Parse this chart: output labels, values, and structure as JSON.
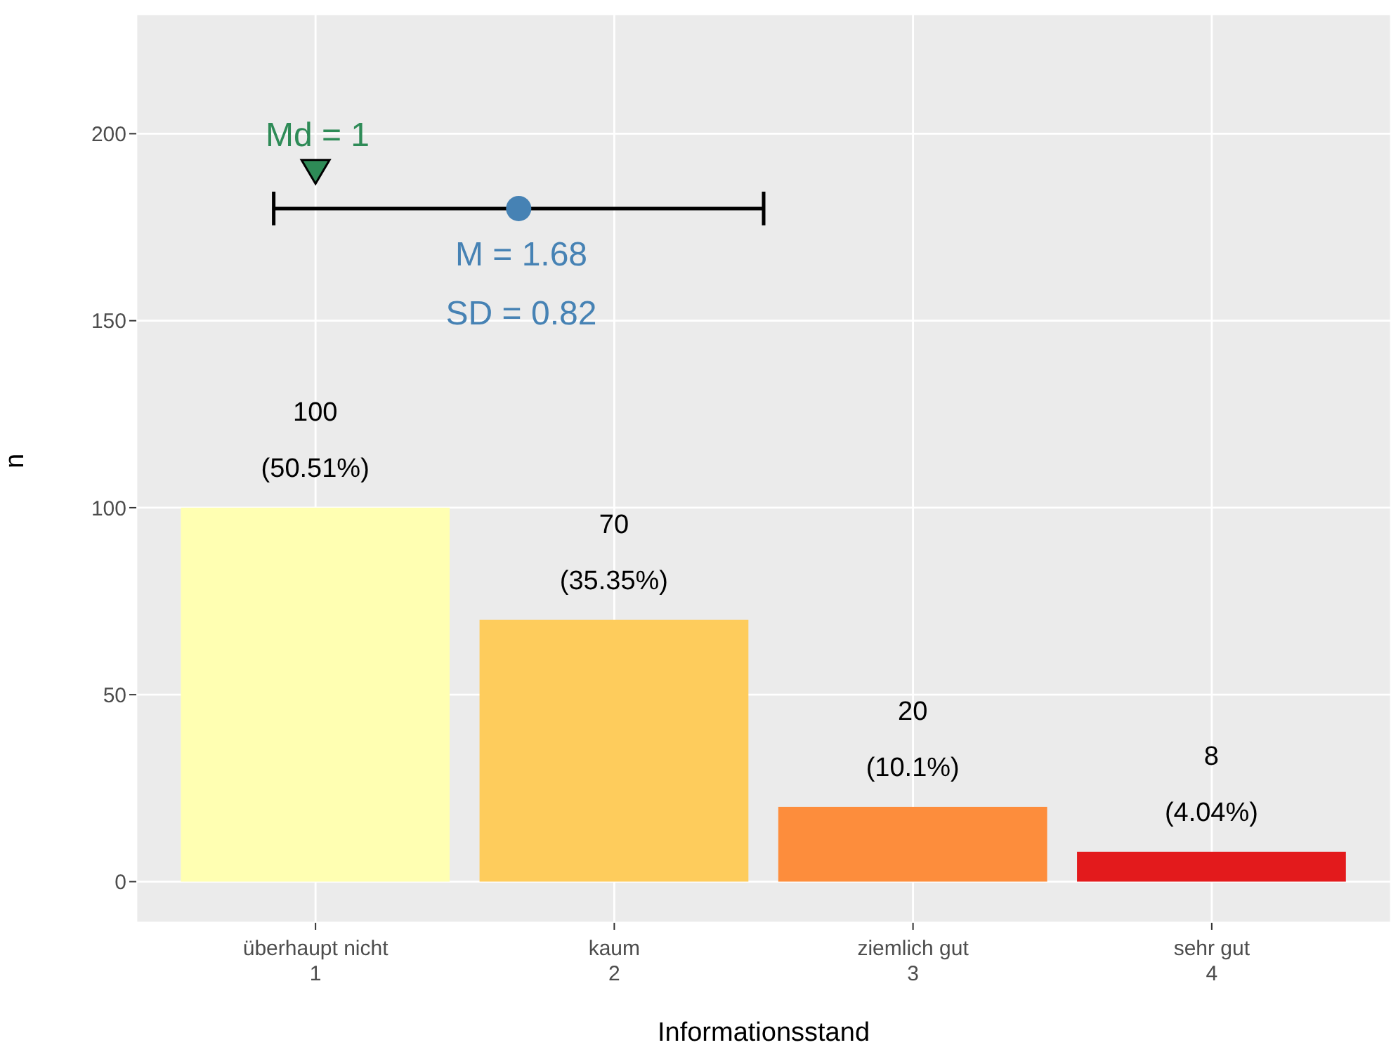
{
  "chart_data": {
    "type": "bar",
    "xlabel": "Informationsstand",
    "ylabel": "n",
    "x": [
      1,
      2,
      3,
      4
    ],
    "xlim": [
      0.4,
      4.6
    ],
    "xticks": [
      1,
      2,
      3,
      4
    ],
    "ylim": [
      -11,
      232
    ],
    "yticks": [
      0,
      50,
      100,
      150,
      200
    ],
    "grid": true,
    "series": [
      {
        "values": [
          100,
          70,
          20,
          8
        ],
        "colors": [
          "#ffffb2",
          "#fecc5c",
          "#fd8d3c",
          "#e31a1c"
        ],
        "value_labels": [
          "100\n(50.51%)",
          "70\n(35.35%)",
          "20\n(10.1%)",
          "8\n(4.04%)"
        ]
      },
      {
        "type": "scatter",
        "x": [
          1.68
        ],
        "values": [
          180
        ],
        "xerrors": [
          0.82
        ],
        "color": "#4682b4",
        "marker": "circle"
      },
      {
        "type": "scatter",
        "x": [
          1
        ],
        "values": [
          190
        ],
        "color": "#2e8b57",
        "marker": "triangle"
      }
    ],
    "annotations": [
      "Md = 1",
      "M = 1.68",
      "SD = 0.82",
      "überhaupt nicht",
      "kaum",
      "ziemlich gut",
      "sehr gut"
    ]
  }
}
